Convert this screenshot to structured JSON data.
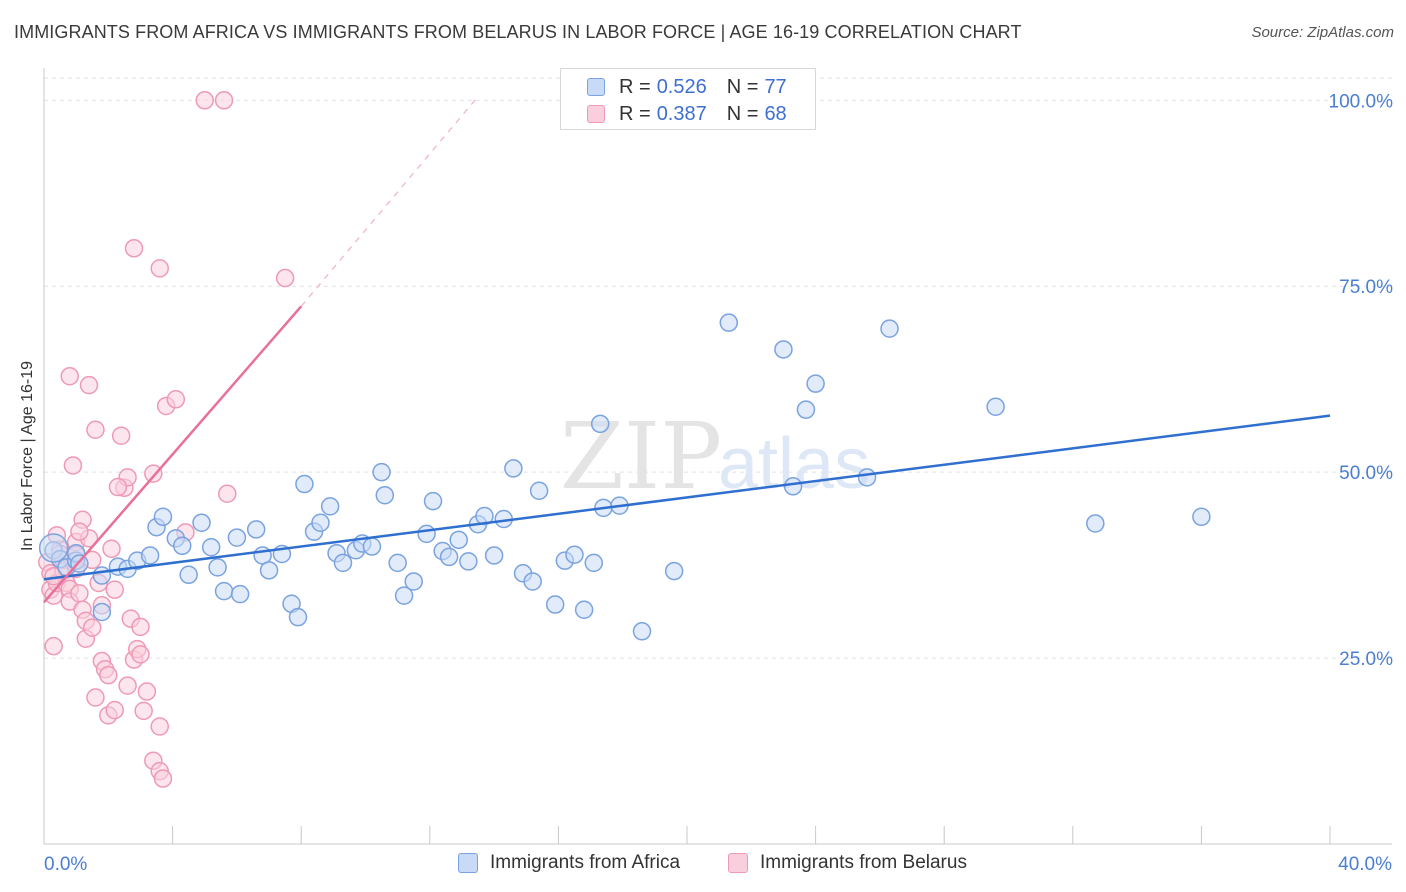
{
  "header": {
    "title": "IMMIGRANTS FROM AFRICA VS IMMIGRANTS FROM BELARUS IN LABOR FORCE | AGE 16-19 CORRELATION CHART",
    "source": "Source: ZipAtlas.com"
  },
  "watermark": {
    "zip": "ZIP",
    "atlas": "atlas"
  },
  "legend": {
    "africa": {
      "r_label": "R =",
      "r_value": "0.526",
      "n_label": "N =",
      "n_value": "77"
    },
    "belarus": {
      "r_label": "R =",
      "r_value": "0.387",
      "n_label": "N =",
      "n_value": "68"
    }
  },
  "bottom_legend": {
    "africa": "Immigrants from Africa",
    "belarus": "Immigrants from Belarus"
  },
  "chart_data": {
    "type": "scatter",
    "ylabel": "In Labor Force | Age 16-19",
    "xlim": [
      0,
      40
    ],
    "ylim": [
      0,
      103
    ],
    "x_tick_labels": [
      {
        "value": 0,
        "label": "0.0%"
      },
      {
        "value": 40,
        "label": "40.0%"
      }
    ],
    "y_tick_labels": [
      {
        "value": 25,
        "label": "25.0%"
      },
      {
        "value": 50,
        "label": "50.0%"
      },
      {
        "value": 75,
        "label": "75.0%"
      },
      {
        "value": 100,
        "label": "100.0%"
      }
    ],
    "colors": {
      "africa_fill": "#c8daf5",
      "africa_stroke": "#7aa3e0",
      "africa_line": "#2f6fd0",
      "belarus_fill": "#f9cfdd",
      "belarus_stroke": "#ee9ab6",
      "belarus_line": "#e8709a",
      "tick_text": "#4a7fd0",
      "grid": "#e2e2e2"
    },
    "series": [
      {
        "name": "Immigrants from Africa",
        "trend": {
          "x0": 0,
          "y0": 35.6,
          "x1": 40,
          "y1": 57.6
        },
        "points": [
          [
            0.3,
            39.5
          ],
          [
            0.5,
            38.3
          ],
          [
            0.7,
            37.2
          ],
          [
            1.0,
            38.1
          ],
          [
            1.0,
            39.1
          ],
          [
            1.1,
            37.7
          ],
          [
            1.8,
            36.1
          ],
          [
            2.3,
            37.3
          ],
          [
            2.6,
            37.0
          ],
          [
            2.9,
            38.1
          ],
          [
            3.3,
            38.8
          ],
          [
            3.5,
            42.6
          ],
          [
            3.7,
            44.0
          ],
          [
            4.1,
            41.1
          ],
          [
            4.3,
            40.1
          ],
          [
            4.5,
            36.2
          ],
          [
            4.9,
            43.2
          ],
          [
            5.2,
            39.9
          ],
          [
            5.4,
            37.2
          ],
          [
            5.6,
            34.0
          ],
          [
            6.0,
            41.2
          ],
          [
            6.1,
            33.6
          ],
          [
            6.6,
            42.3
          ],
          [
            6.8,
            38.8
          ],
          [
            7.0,
            36.8
          ],
          [
            7.4,
            39.0
          ],
          [
            7.7,
            32.3
          ],
          [
            7.9,
            30.5
          ],
          [
            8.1,
            48.4
          ],
          [
            8.4,
            42.0
          ],
          [
            8.6,
            43.2
          ],
          [
            8.9,
            45.4
          ],
          [
            9.1,
            39.1
          ],
          [
            9.3,
            37.8
          ],
          [
            9.7,
            39.5
          ],
          [
            9.9,
            40.4
          ],
          [
            10.2,
            40.0
          ],
          [
            10.5,
            50.0
          ],
          [
            10.6,
            46.9
          ],
          [
            11.0,
            37.8
          ],
          [
            11.2,
            33.4
          ],
          [
            11.5,
            35.3
          ],
          [
            11.9,
            41.7
          ],
          [
            12.1,
            46.1
          ],
          [
            12.4,
            39.4
          ],
          [
            12.6,
            38.6
          ],
          [
            12.9,
            40.9
          ],
          [
            13.2,
            38.0
          ],
          [
            13.5,
            43.0
          ],
          [
            13.7,
            44.1
          ],
          [
            14.0,
            38.8
          ],
          [
            14.3,
            43.7
          ],
          [
            14.6,
            50.5
          ],
          [
            14.9,
            36.4
          ],
          [
            15.2,
            35.3
          ],
          [
            15.4,
            47.5
          ],
          [
            15.9,
            32.2
          ],
          [
            16.2,
            38.1
          ],
          [
            16.5,
            38.9
          ],
          [
            16.8,
            31.5
          ],
          [
            17.1,
            37.8
          ],
          [
            17.3,
            56.5
          ],
          [
            17.4,
            45.2
          ],
          [
            17.9,
            45.5
          ],
          [
            18.6,
            28.6
          ],
          [
            19.6,
            36.7
          ],
          [
            21.3,
            70.1
          ],
          [
            23.0,
            66.5
          ],
          [
            23.3,
            48.1
          ],
          [
            23.7,
            58.4
          ],
          [
            24.0,
            61.9
          ],
          [
            25.6,
            49.3
          ],
          [
            26.3,
            69.3
          ],
          [
            29.6,
            58.8
          ],
          [
            32.7,
            43.1
          ],
          [
            36.0,
            44.0
          ],
          [
            1.8,
            31.2
          ]
        ]
      },
      {
        "name": "Immigrants from Belarus",
        "trend": {
          "x0": 0,
          "y0": 32.5,
          "x1": 8.0,
          "y1": 72.3
        },
        "trend_dashed": {
          "x0": 8.0,
          "y0": 72.3,
          "x1": 13.5,
          "y1": 100.5
        },
        "points": [
          [
            0.1,
            37.9
          ],
          [
            0.2,
            36.4
          ],
          [
            0.2,
            34.2
          ],
          [
            0.3,
            33.4
          ],
          [
            0.3,
            26.6
          ],
          [
            0.4,
            35.1
          ],
          [
            0.5,
            39.6
          ],
          [
            0.6,
            38.2
          ],
          [
            0.6,
            36.7
          ],
          [
            0.7,
            35.1
          ],
          [
            0.8,
            34.3
          ],
          [
            0.8,
            32.6
          ],
          [
            0.9,
            38.0
          ],
          [
            1.0,
            40.6
          ],
          [
            1.0,
            38.9
          ],
          [
            1.0,
            37.0
          ],
          [
            1.1,
            33.7
          ],
          [
            1.2,
            31.5
          ],
          [
            1.3,
            30.0
          ],
          [
            1.3,
            27.6
          ],
          [
            1.4,
            41.1
          ],
          [
            1.5,
            38.2
          ],
          [
            1.5,
            29.1
          ],
          [
            1.6,
            19.7
          ],
          [
            1.7,
            35.1
          ],
          [
            1.8,
            32.1
          ],
          [
            1.8,
            24.6
          ],
          [
            1.9,
            23.5
          ],
          [
            2.0,
            22.7
          ],
          [
            2.0,
            17.3
          ],
          [
            2.1,
            39.7
          ],
          [
            2.2,
            34.2
          ],
          [
            2.2,
            18.0
          ],
          [
            2.4,
            54.9
          ],
          [
            2.5,
            47.9
          ],
          [
            2.6,
            49.3
          ],
          [
            2.7,
            30.3
          ],
          [
            2.8,
            24.8
          ],
          [
            2.9,
            26.2
          ],
          [
            3.0,
            29.2
          ],
          [
            3.1,
            17.9
          ],
          [
            3.2,
            20.5
          ],
          [
            3.4,
            11.2
          ],
          [
            3.6,
            9.8
          ],
          [
            3.6,
            15.8
          ],
          [
            3.7,
            8.8
          ],
          [
            0.8,
            62.9
          ],
          [
            1.4,
            61.7
          ],
          [
            1.6,
            55.7
          ],
          [
            2.8,
            80.1
          ],
          [
            3.4,
            49.8
          ],
          [
            3.6,
            77.4
          ],
          [
            3.8,
            58.9
          ],
          [
            4.1,
            59.8
          ],
          [
            4.4,
            41.9
          ],
          [
            5.0,
            100.0
          ],
          [
            5.6,
            100.0
          ],
          [
            5.7,
            47.1
          ],
          [
            7.5,
            76.1
          ],
          [
            0.9,
            50.9
          ],
          [
            1.2,
            43.6
          ],
          [
            0.5,
            39.0
          ],
          [
            0.3,
            36.0
          ],
          [
            2.3,
            48.0
          ],
          [
            2.6,
            21.3
          ],
          [
            3.0,
            25.5
          ],
          [
            1.1,
            42.0
          ],
          [
            0.4,
            41.5
          ]
        ]
      }
    ]
  }
}
